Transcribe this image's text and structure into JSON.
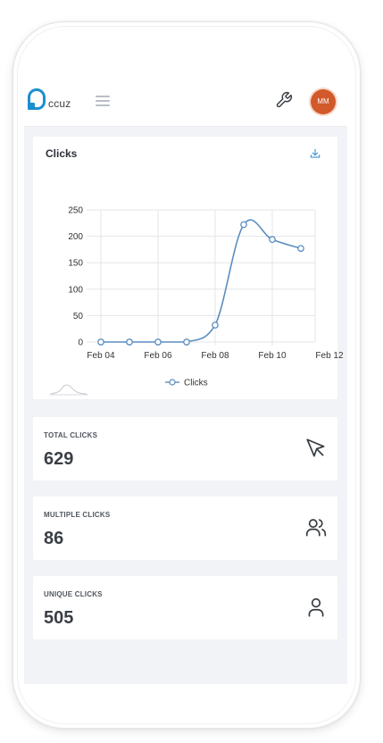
{
  "header": {
    "logo_text": "ccuz",
    "avatar_initials": "MM",
    "brand_color": "#1a8fd0",
    "avatar_color": "#d2592a",
    "icons": [
      "hamburger-menu-icon",
      "wrench-icon"
    ]
  },
  "chart_card": {
    "title": "Clicks",
    "download_icon": "download-icon"
  },
  "chart_data": {
    "type": "line",
    "title": "Clicks",
    "x": [
      "Feb 04",
      "Feb 05",
      "Feb 06",
      "Feb 07",
      "Feb 08",
      "Feb 09",
      "Feb 10",
      "Feb 11"
    ],
    "x_tick_labels": [
      "Feb 04",
      "Feb 06",
      "Feb 08",
      "Feb 10",
      "Feb 12"
    ],
    "y_tick_labels": [
      "0",
      "50",
      "100",
      "150",
      "200",
      "250"
    ],
    "series": [
      {
        "name": "Clicks",
        "values": [
          0,
          0,
          0,
          0,
          32,
          222,
          194,
          177
        ],
        "color": "#5b8dc0"
      }
    ],
    "ylim": [
      0,
      250
    ],
    "grid": true,
    "legend": "bottom"
  },
  "stats": {
    "total": {
      "label": "TOTAL CLICKS",
      "value": "629",
      "icon": "cursor-arrow-icon"
    },
    "multiple": {
      "label": "MULTIPLE CLICKS",
      "value": "86",
      "icon": "users-icon"
    },
    "unique": {
      "label": "UNIQUE CLICKS",
      "value": "505",
      "icon": "user-icon"
    }
  }
}
